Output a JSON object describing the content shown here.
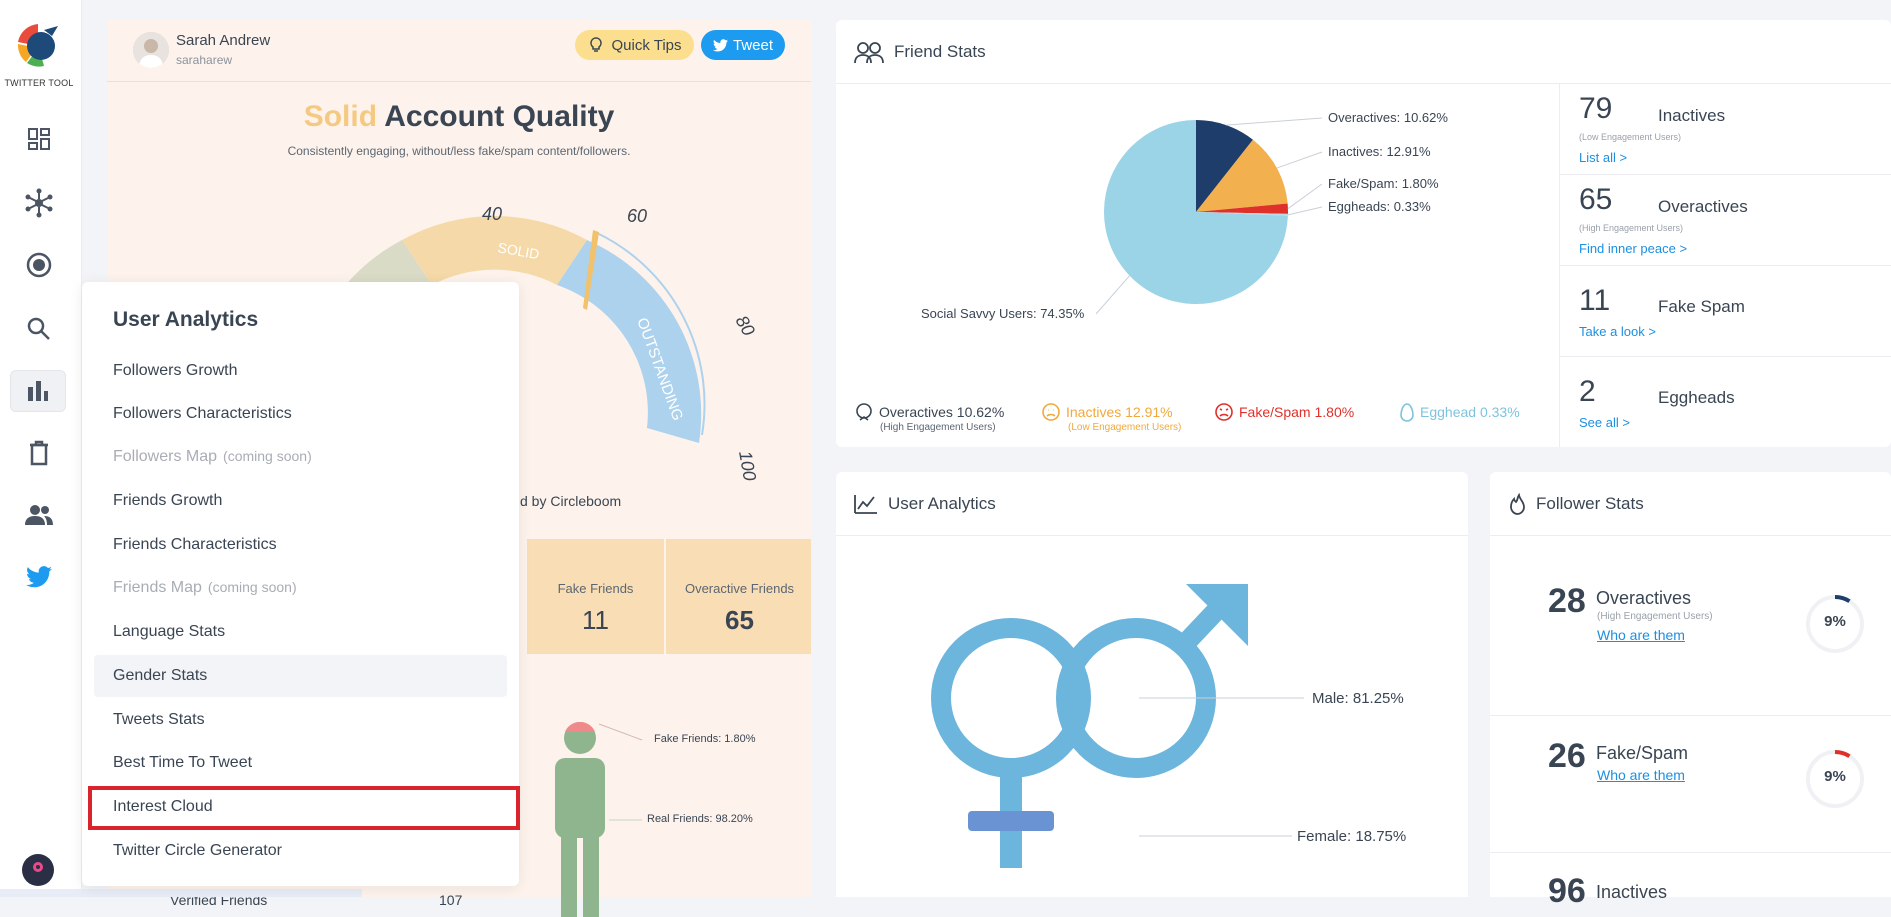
{
  "app": {
    "logo_text": "TWITTER TOOL"
  },
  "profile": {
    "name": "Sarah Andrew",
    "handle": "saraharew"
  },
  "buttons": {
    "quick_tips": "Quick Tips",
    "tweet": "Tweet"
  },
  "quality": {
    "title_accent": "Solid",
    "title_rest": "Account Quality",
    "subtitle": "Consistently engaging, without/less fake/spam content/followers.",
    "gauge_ticks": [
      "40",
      "60",
      "80",
      "100"
    ],
    "gauge_bands": [
      "SOLID",
      "OUTSTANDING"
    ],
    "powered": "d by Circleboom",
    "stat_cells": [
      {
        "label": "Fake Friends",
        "value": "11"
      },
      {
        "label": "Overactive Friends",
        "value": "65"
      }
    ],
    "figure_labels": [
      "Fake Friends: 1.80%",
      "Real Friends: 98.20%"
    ],
    "bottom_row": {
      "label": "Verified Friends",
      "value": "107"
    }
  },
  "menu": {
    "title": "User Analytics",
    "items": [
      {
        "label": "Followers Growth",
        "soon": ""
      },
      {
        "label": "Followers Characteristics",
        "soon": ""
      },
      {
        "label": "Followers Map",
        "soon": "(coming soon)"
      },
      {
        "label": "Friends Growth",
        "soon": ""
      },
      {
        "label": "Friends Characteristics",
        "soon": ""
      },
      {
        "label": "Friends Map",
        "soon": "(coming soon)"
      },
      {
        "label": "Language Stats",
        "soon": ""
      },
      {
        "label": "Gender Stats",
        "soon": ""
      },
      {
        "label": "Tweets Stats",
        "soon": ""
      },
      {
        "label": "Best Time To Tweet",
        "soon": ""
      },
      {
        "label": "Interest Cloud",
        "soon": ""
      },
      {
        "label": "Twitter Circle Generator",
        "soon": ""
      }
    ]
  },
  "friend_stats": {
    "title": "Friend Stats",
    "pie_labels": [
      "Overactives: 10.62%",
      "Inactives: 12.91%",
      "Fake/Spam: 1.80%",
      "Eggheads: 0.33%",
      "Social Savvy Users: 74.35%"
    ],
    "legend": [
      {
        "label": "Overactives 10.62%",
        "sub": "(High Engagement Users)",
        "color": "#3a4553"
      },
      {
        "label": "Inactives 12.91%",
        "sub": "(Low Engagement Users)",
        "color": "#f0a93a"
      },
      {
        "label": "Fake/Spam 1.80%",
        "sub": "",
        "color": "#e0302a"
      },
      {
        "label": "Egghead 0.33%",
        "sub": "",
        "color": "#7ec3dd"
      }
    ],
    "rows": [
      {
        "num": "79",
        "name": "Inactives",
        "sub": "(Low Engagement Users)",
        "link": "List all >"
      },
      {
        "num": "65",
        "name": "Overactives",
        "sub": "(High Engagement Users)",
        "link": "Find inner peace >"
      },
      {
        "num": "11",
        "name": "Fake Spam",
        "sub": "",
        "link": "Take a look >"
      },
      {
        "num": "2",
        "name": "Eggheads",
        "sub": "",
        "link": "See all >"
      }
    ]
  },
  "chart_data": {
    "type": "pie",
    "title": "",
    "categories": [
      "Overactives",
      "Inactives",
      "Fake/Spam",
      "Eggheads",
      "Social Savvy Users"
    ],
    "values": [
      10.62,
      12.91,
      1.8,
      0.33,
      74.35
    ],
    "colors": [
      "#1f3d6a",
      "#f2b14e",
      "#e0302a",
      "#b9dbe8",
      "#9bd4e6"
    ],
    "legend_position": "bottom"
  },
  "user_analytics": {
    "title": "User Analytics",
    "male_label": "Male: 81.25%",
    "female_label": "Female: 18.75%"
  },
  "follower_stats": {
    "title": "Follower Stats",
    "rows": [
      {
        "num": "28",
        "name": "Overactives",
        "sub": "(High Engagement Users)",
        "link": "Who are them",
        "pct": "9%",
        "fraction": 0.09,
        "color": "#1f3d6a"
      },
      {
        "num": "26",
        "name": "Fake/Spam",
        "sub": "",
        "link": "Who are them",
        "pct": "9%",
        "fraction": 0.09,
        "color": "#e0302a"
      },
      {
        "num": "96",
        "name": "Inactives",
        "sub": "",
        "link": "",
        "pct": "",
        "fraction": 0,
        "color": "#f0a93a"
      }
    ]
  }
}
